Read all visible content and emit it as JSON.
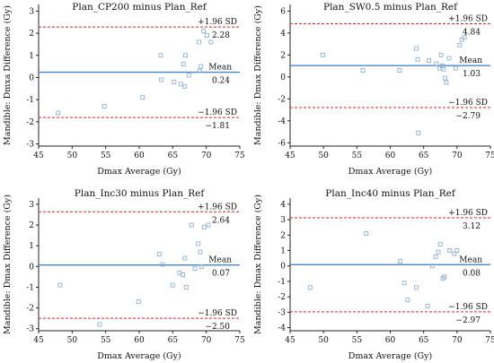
{
  "chart_data": [
    {
      "type": "scatter",
      "title": "Plan_CP200 minus Plan_Ref",
      "xlabel": "Dmax Average (Gy)",
      "ylabel": "Mandible: Dmxa Difference (Gy)",
      "xlim": [
        45,
        75
      ],
      "ylim": [
        -3.1,
        3.3
      ],
      "xticks": [
        "45",
        "50",
        "55",
        "60",
        "65",
        "70",
        "75"
      ],
      "xtick_values": [
        45,
        50,
        55,
        60,
        65,
        70,
        75
      ],
      "yticks": [
        "-3",
        "-2",
        "-1",
        "0",
        "1",
        "2",
        "3"
      ],
      "ytick_values": [
        -3,
        -2,
        -1,
        0,
        1,
        2,
        3
      ],
      "mean": 0.24,
      "upper": 2.28,
      "lower": -1.81,
      "upper_label": "+1.96 SD",
      "mean_label": "Mean",
      "lower_label": "−1.96 SD",
      "upper_value_text": "2.28",
      "mean_value_text": "0.24",
      "lower_value_text": "−1.81",
      "points": [
        [
          47.9,
          -1.6
        ],
        [
          54.8,
          -1.3
        ],
        [
          60.5,
          -0.9
        ],
        [
          63.2,
          1.0
        ],
        [
          63.3,
          -0.1
        ],
        [
          65.2,
          -0.2
        ],
        [
          66.2,
          -0.3
        ],
        [
          66.6,
          0.6
        ],
        [
          66.8,
          -0.4
        ],
        [
          66.9,
          1.0
        ],
        [
          67.4,
          0.1
        ],
        [
          68.9,
          1.6
        ],
        [
          69.0,
          0.3
        ],
        [
          69.2,
          0.5
        ],
        [
          69.6,
          2.1
        ],
        [
          70.1,
          1.9
        ],
        [
          70.7,
          1.6
        ]
      ]
    },
    {
      "type": "scatter",
      "title": "Plan_SW0.5 minus Plan_Ref",
      "xlabel": "Dmax Average (Gy)",
      "ylabel": "Mandible: Dmax Difference (Gy)",
      "xlim": [
        45,
        75
      ],
      "ylim": [
        -6.3,
        6.6
      ],
      "xticks": [
        "45",
        "50",
        "55",
        "60",
        "65",
        "70",
        "75"
      ],
      "xtick_values": [
        45,
        50,
        55,
        60,
        65,
        70,
        75
      ],
      "yticks": [
        "-6",
        "-4",
        "-2",
        "0",
        "2",
        "4",
        "6"
      ],
      "ytick_values": [
        -6,
        -4,
        -2,
        0,
        2,
        4,
        6
      ],
      "mean": 1.03,
      "upper": 4.84,
      "lower": -2.79,
      "upper_label": "+1.96 SD",
      "mean_label": "Mean",
      "lower_label": "−1.96 SD",
      "upper_value_text": "4.84",
      "mean_value_text": "1.03",
      "lower_value_text": "−2.79",
      "points": [
        [
          49.9,
          2.0
        ],
        [
          55.9,
          0.6
        ],
        [
          61.4,
          0.6
        ],
        [
          63.9,
          2.6
        ],
        [
          64.1,
          1.6
        ],
        [
          64.2,
          -5.1
        ],
        [
          65.8,
          1.5
        ],
        [
          66.9,
          1.2
        ],
        [
          67.4,
          0.8
        ],
        [
          67.6,
          2.0
        ],
        [
          67.8,
          1.0
        ],
        [
          68.0,
          0.7
        ],
        [
          68.2,
          -0.1
        ],
        [
          68.4,
          -0.5
        ],
        [
          68.8,
          1.7
        ],
        [
          69.8,
          0.8
        ],
        [
          70.4,
          2.9
        ],
        [
          70.7,
          3.4
        ],
        [
          71.1,
          3.6
        ]
      ]
    },
    {
      "type": "scatter",
      "title": "Plan_Inc30 minus Plan_Ref",
      "xlabel": "Dmax Average (Gy)",
      "ylabel": "Mandible: Dmax Difference (Gy)",
      "xlim": [
        45,
        75
      ],
      "ylim": [
        -3.1,
        3.3
      ],
      "xticks": [
        "45",
        "50",
        "55",
        "60",
        "65",
        "70",
        "75"
      ],
      "xtick_values": [
        45,
        50,
        55,
        60,
        65,
        70,
        75
      ],
      "yticks": [
        "-3",
        "-2",
        "-1",
        "0",
        "1",
        "2",
        "3"
      ],
      "ytick_values": [
        -3,
        -2,
        -1,
        0,
        1,
        2,
        3
      ],
      "mean": 0.07,
      "upper": 2.64,
      "lower": -2.5,
      "upper_label": "+1.96 SD",
      "mean_label": "Mean",
      "lower_label": "−1.96 SD",
      "upper_value_text": "2.64",
      "mean_value_text": "0.07",
      "lower_value_text": "−2.50",
      "points": [
        [
          48.2,
          -0.9
        ],
        [
          54.1,
          -2.8
        ],
        [
          59.9,
          -1.7
        ],
        [
          63.0,
          0.6
        ],
        [
          63.5,
          0.1
        ],
        [
          65.0,
          -0.9
        ],
        [
          66.0,
          -0.3
        ],
        [
          66.5,
          -0.4
        ],
        [
          66.8,
          0.4
        ],
        [
          67.0,
          -1.0
        ],
        [
          67.8,
          2.0
        ],
        [
          68.3,
          -0.1
        ],
        [
          68.8,
          1.1
        ],
        [
          69.1,
          0.7
        ],
        [
          69.3,
          0.0
        ],
        [
          69.7,
          1.9
        ],
        [
          70.3,
          2.0
        ]
      ]
    },
    {
      "type": "scatter",
      "title": "Plan_Inc40 minus Plan_Ref",
      "xlabel": "Dmax Average (Gy)",
      "ylabel": "Mandible: Dmax Difference (Gy)",
      "xlim": [
        45,
        75
      ],
      "ylim": [
        -4.2,
        4.4
      ],
      "xticks": [
        "45",
        "50",
        "55",
        "60",
        "65",
        "70",
        "75"
      ],
      "xtick_values": [
        45,
        50,
        55,
        60,
        65,
        70,
        75
      ],
      "yticks": [
        "-4",
        "-3",
        "-2",
        "-1",
        "0",
        "1",
        "2",
        "3",
        "4"
      ],
      "ytick_values": [
        -4,
        -3,
        -2,
        -1,
        0,
        1,
        2,
        3,
        4
      ],
      "mean": 0.08,
      "upper": 3.12,
      "lower": -2.97,
      "upper_label": "+1.96 SD",
      "mean_label": "Mean",
      "lower_label": "−1.96 SD",
      "upper_value_text": "3.12",
      "mean_value_text": "0.08",
      "lower_value_text": "−2.97",
      "points": [
        [
          48.0,
          -1.4
        ],
        [
          56.4,
          2.1
        ],
        [
          61.5,
          0.3
        ],
        [
          62.1,
          -1.1
        ],
        [
          62.6,
          -2.2
        ],
        [
          63.9,
          -1.4
        ],
        [
          65.6,
          -2.6
        ],
        [
          66.3,
          0.0
        ],
        [
          66.8,
          0.6
        ],
        [
          67.2,
          0.9
        ],
        [
          67.5,
          1.4
        ],
        [
          67.9,
          -0.8
        ],
        [
          68.1,
          -0.7
        ],
        [
          68.9,
          1.0
        ],
        [
          69.6,
          0.8
        ],
        [
          70.0,
          1.0
        ]
      ]
    }
  ],
  "colors": {
    "points": "#8fb1d6",
    "mean_line": "#4a85c2",
    "sd_line": "#cc2a2a",
    "axis": "#222222"
  }
}
